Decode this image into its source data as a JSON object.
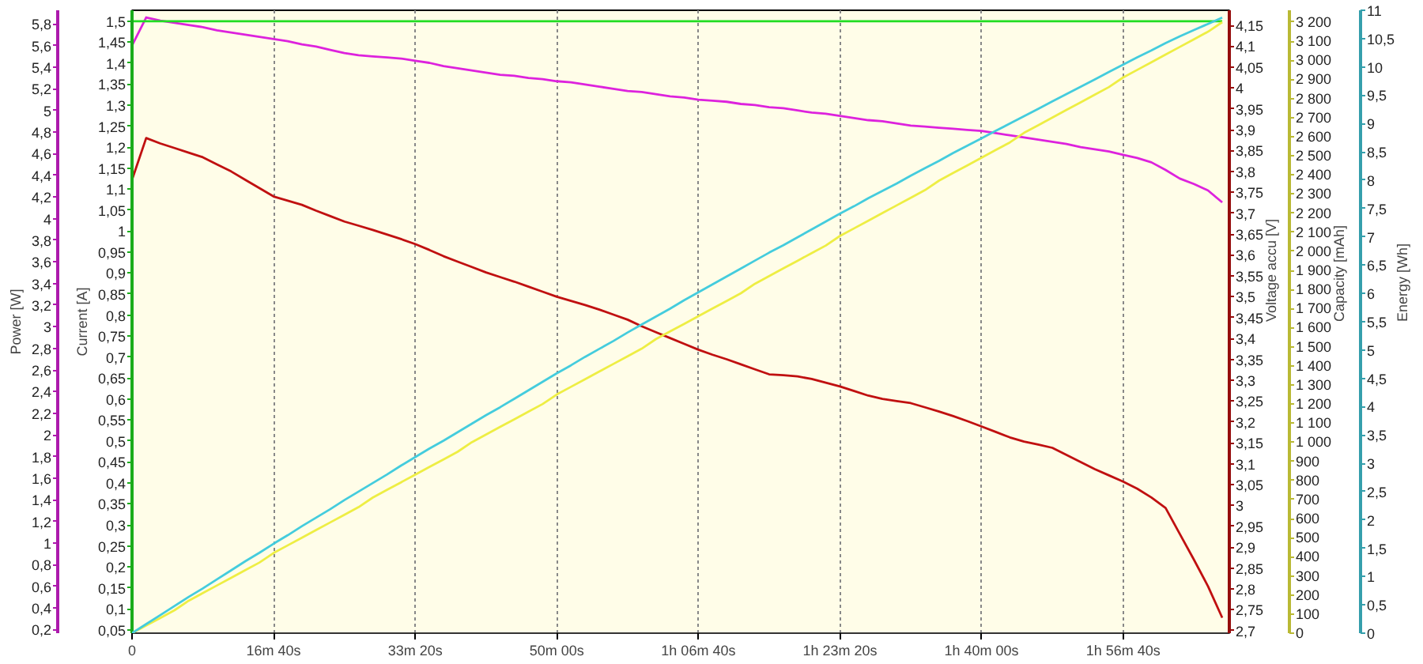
{
  "chart_data": [
    {
      "type": "line",
      "grid": "x",
      "categories": [
        "0",
        null,
        null,
        null,
        null,
        null,
        null,
        null,
        null,
        null,
        "16m 40s",
        null,
        null,
        null,
        null,
        null,
        null,
        null,
        null,
        null,
        "33m 20s",
        null,
        null,
        null,
        null,
        null,
        null,
        null,
        null,
        null,
        "50m 00s",
        null,
        null,
        null,
        null,
        null,
        null,
        null,
        null,
        null,
        "1h 06m 40s",
        null,
        null,
        null,
        null,
        null,
        null,
        null,
        null,
        null,
        "1h 23m 20s",
        null,
        null,
        null,
        null,
        null,
        null,
        null,
        null,
        null,
        "1h 40m 00s",
        null,
        null,
        null,
        null,
        null,
        null,
        null,
        null,
        null,
        "1h 56m 40s",
        null,
        null,
        null,
        null,
        null,
        null,
        null
      ],
      "ylabel": "Current [A]",
      "ylim": [
        0.042,
        1.526
      ],
      "yticks": [
        {
          "value": 0.05,
          "label": "0,05"
        },
        {
          "value": 0.1,
          "label": "0,1"
        },
        {
          "value": 0.15,
          "label": "0,15"
        },
        {
          "value": 0.2,
          "label": "0,2"
        },
        {
          "value": 0.25,
          "label": "0,25"
        },
        {
          "value": 0.3,
          "label": "0,3"
        },
        {
          "value": 0.35,
          "label": "0,35"
        },
        {
          "value": 0.4,
          "label": "0,4"
        },
        {
          "value": 0.45,
          "label": "0,45"
        },
        {
          "value": 0.5,
          "label": "0,5"
        },
        {
          "value": 0.55,
          "label": "0,55"
        },
        {
          "value": 0.6,
          "label": "0,6"
        },
        {
          "value": 0.65,
          "label": "0,65"
        },
        {
          "value": 0.7,
          "label": "0,7"
        },
        {
          "value": 0.75,
          "label": "0,75"
        },
        {
          "value": 0.8,
          "label": "0,8"
        },
        {
          "value": 0.85,
          "label": "0,85"
        },
        {
          "value": 0.9,
          "label": "0,9"
        },
        {
          "value": 0.95,
          "label": "0,95"
        },
        1,
        {
          "value": 1.05,
          "label": "1,05"
        },
        {
          "value": 1.1,
          "label": "1,1"
        },
        {
          "value": 1.15,
          "label": "1,15"
        },
        {
          "value": 1.2,
          "label": "1,2"
        },
        {
          "value": 1.25,
          "label": "1,25"
        },
        {
          "value": 1.3,
          "label": "1,3"
        },
        {
          "value": 1.35,
          "label": "1,35"
        },
        {
          "value": 1.4,
          "label": "1,4"
        },
        {
          "value": 1.45,
          "label": "1,45"
        },
        {
          "value": 1.5,
          "label": "1,5"
        }
      ],
      "y2label": "Power [W]",
      "y2lim": [
        0.167,
        5.926
      ],
      "y2ticks": [
        {
          "value": 0.2,
          "label": "0,2"
        },
        {
          "value": 0.4,
          "label": "0,4"
        },
        {
          "value": 0.6,
          "label": "0,6"
        },
        {
          "value": 0.8,
          "label": "0,8"
        },
        1,
        {
          "value": 1.2,
          "label": "1,2"
        },
        {
          "value": 1.4,
          "label": "1,4"
        },
        {
          "value": 1.6,
          "label": "1,6"
        },
        {
          "value": 1.8,
          "label": "1,8"
        },
        2,
        {
          "value": 2.2,
          "label": "2,2"
        },
        {
          "value": 2.4,
          "label": "2,4"
        },
        {
          "value": 2.6,
          "label": "2,6"
        },
        {
          "value": 2.8,
          "label": "2,8"
        },
        3,
        {
          "value": 3.2,
          "label": "3,2"
        },
        {
          "value": 3.4,
          "label": "3,4"
        },
        {
          "value": 3.6,
          "label": "3,6"
        },
        {
          "value": 3.8,
          "label": "3,8"
        },
        4,
        {
          "value": 4.2,
          "label": "4,2"
        },
        {
          "value": 4.4,
          "label": "4,4"
        },
        {
          "value": 4.6,
          "label": "4,6"
        },
        {
          "value": 4.8,
          "label": "4,8"
        },
        5,
        {
          "value": 5.2,
          "label": "5,2"
        },
        {
          "value": 5.4,
          "label": "5,4"
        },
        {
          "value": 5.6,
          "label": "5,6"
        },
        {
          "value": 5.8,
          "label": "5,8"
        }
      ],
      "y3label": "Voltage accu [V]",
      "y3lim": [
        2.694,
        4.186
      ],
      "y3ticks": [
        {
          "value": 2.7,
          "label": "2,7"
        },
        {
          "value": 2.75,
          "label": "2,75"
        },
        {
          "value": 2.8,
          "label": "2,8"
        },
        {
          "value": 2.85,
          "label": "2,85"
        },
        {
          "value": 2.9,
          "label": "2,9"
        },
        {
          "value": 2.95,
          "label": "2,95"
        },
        3,
        {
          "value": 3.05,
          "label": "3,05"
        },
        {
          "value": 3.1,
          "label": "3,1"
        },
        {
          "value": 3.15,
          "label": "3,15"
        },
        {
          "value": 3.2,
          "label": "3,2"
        },
        {
          "value": 3.25,
          "label": "3,25"
        },
        {
          "value": 3.3,
          "label": "3,3"
        },
        {
          "value": 3.35,
          "label": "3,35"
        },
        {
          "value": 3.4,
          "label": "3,4"
        },
        {
          "value": 3.45,
          "label": "3,45"
        },
        {
          "value": 3.5,
          "label": "3,5"
        },
        {
          "value": 3.55,
          "label": "3,55"
        },
        {
          "value": 3.6,
          "label": "3,6"
        },
        {
          "value": 3.65,
          "label": "3,65"
        },
        {
          "value": 3.7,
          "label": "3,7"
        },
        {
          "value": 3.75,
          "label": "3,75"
        },
        {
          "value": 3.8,
          "label": "3,8"
        },
        {
          "value": 3.85,
          "label": "3,85"
        },
        {
          "value": 3.9,
          "label": "3,9"
        },
        {
          "value": 3.95,
          "label": "3,95"
        },
        4,
        {
          "value": 4.05,
          "label": "4,05"
        },
        {
          "value": 4.1,
          "label": "4,1"
        },
        {
          "value": 4.15,
          "label": "4,15"
        }
      ],
      "series": [
        {
          "color": "#c01010",
          "axis": "y3",
          "values": [
            3.78,
            3.88,
            3.867,
            3.856,
            3.845,
            3.834,
            3.817,
            3.8,
            3.78,
            3.76,
            3.74,
            3.73,
            3.72,
            3.706,
            3.693,
            3.68,
            3.67,
            3.66,
            3.649,
            3.638,
            3.626,
            3.612,
            3.597,
            3.584,
            3.571,
            3.558,
            3.547,
            3.536,
            3.524,
            3.512,
            3.5,
            3.49,
            3.48,
            3.469,
            3.457,
            3.445,
            3.429,
            3.415,
            3.401,
            3.387,
            3.373,
            3.361,
            3.35,
            3.338,
            3.326,
            3.314,
            3.312,
            3.309,
            3.303,
            3.294,
            3.285,
            3.274,
            3.263,
            3.255,
            3.25,
            3.245,
            3.235,
            3.225,
            3.214,
            3.202,
            3.189,
            3.176,
            3.163,
            3.153,
            3.146,
            3.138,
            3.121,
            3.104,
            3.087,
            3.072,
            3.057,
            3.04,
            3.019,
            2.994,
            2.932,
            2.87,
            2.806,
            2.731
          ]
        },
        {
          "color": "#dd22dd",
          "axis": "y2",
          "values": [
            5.6,
            5.86,
            5.83,
            5.81,
            5.79,
            5.77,
            5.74,
            5.72,
            5.7,
            5.68,
            5.66,
            5.64,
            5.61,
            5.59,
            5.56,
            5.53,
            5.51,
            5.5,
            5.49,
            5.48,
            5.46,
            5.44,
            5.41,
            5.39,
            5.37,
            5.35,
            5.33,
            5.32,
            5.3,
            5.29,
            5.27,
            5.26,
            5.24,
            5.22,
            5.2,
            5.18,
            5.17,
            5.15,
            5.13,
            5.12,
            5.1,
            5.09,
            5.08,
            5.06,
            5.05,
            5.03,
            5.02,
            5,
            4.98,
            4.97,
            4.95,
            4.93,
            4.91,
            4.9,
            4.88,
            4.86,
            4.85,
            4.84,
            4.83,
            4.82,
            4.81,
            4.79,
            4.77,
            4.75,
            4.73,
            4.71,
            4.69,
            4.66,
            4.64,
            4.62,
            4.59,
            4.56,
            4.52,
            4.45,
            4.37,
            4.32,
            4.26,
            4.15
          ]
        },
        {
          "color": "#22dd22",
          "values": [
            1.5,
            1.5,
            1.5,
            1.5,
            1.5,
            1.5,
            1.5,
            1.5,
            1.5,
            1.5,
            1.5,
            1.5,
            1.5,
            1.5,
            1.5,
            1.5,
            1.5,
            1.5,
            1.5,
            1.5,
            1.5,
            1.5,
            1.5,
            1.5,
            1.5,
            1.5,
            1.5,
            1.5,
            1.5,
            1.5,
            1.5,
            1.5,
            1.5,
            1.5,
            1.5,
            1.5,
            1.5,
            1.5,
            1.5,
            1.5,
            1.5,
            1.5,
            1.5,
            1.5,
            1.5,
            1.5,
            1.5,
            1.5,
            1.5,
            1.5,
            1.5,
            1.5,
            1.5,
            1.5,
            1.5,
            1.5,
            1.5,
            1.5,
            1.5,
            1.5,
            1.5,
            1.5,
            1.5,
            1.5,
            1.5,
            1.5,
            1.5,
            1.5,
            1.5,
            1.5,
            1.5,
            1.5,
            1.5,
            1.5,
            1.5,
            1.5,
            1.5,
            1.5
          ]
        }
      ]
    },
    {
      "type": "line",
      "tick_labels": "y",
      "categories": [
        null,
        null,
        null,
        null,
        null,
        null,
        null,
        null,
        null,
        null,
        null,
        null,
        null,
        null,
        null,
        null,
        null,
        null,
        null,
        null,
        null,
        null,
        null,
        null,
        null,
        null,
        null,
        null,
        null,
        null,
        null,
        null,
        null,
        null,
        null,
        null,
        null,
        null,
        null,
        null,
        null,
        null,
        null,
        null,
        null,
        null,
        null,
        null,
        null,
        null,
        null,
        null,
        null,
        null,
        null,
        null,
        null,
        null,
        null,
        null,
        null,
        null,
        null,
        null,
        null,
        null,
        null,
        null,
        null,
        null,
        null,
        null,
        null,
        null,
        null,
        null,
        null,
        null
      ],
      "ylabel": "Capacity [mAh]",
      "ylim": [
        0,
        3262
      ],
      "yticks": [
        0,
        100,
        200,
        300,
        400,
        500,
        600,
        700,
        800,
        900,
        {
          "value": 1000,
          "label": "1 000"
        },
        {
          "value": 1100,
          "label": "1 100"
        },
        {
          "value": 1200,
          "label": "1 200"
        },
        {
          "value": 1300,
          "label": "1 300"
        },
        {
          "value": 1400,
          "label": "1 400"
        },
        {
          "value": 1500,
          "label": "1 500"
        },
        {
          "value": 1600,
          "label": "1 600"
        },
        {
          "value": 1700,
          "label": "1 700"
        },
        {
          "value": 1800,
          "label": "1 800"
        },
        {
          "value": 1900,
          "label": "1 900"
        },
        {
          "value": 2000,
          "label": "2 000"
        },
        {
          "value": 2100,
          "label": "2 100"
        },
        {
          "value": 2200,
          "label": "2 200"
        },
        {
          "value": 2300,
          "label": "2 300"
        },
        {
          "value": 2400,
          "label": "2 400"
        },
        {
          "value": 2500,
          "label": "2 500"
        },
        {
          "value": 2600,
          "label": "2 600"
        },
        {
          "value": 2700,
          "label": "2 700"
        },
        {
          "value": 2800,
          "label": "2 800"
        },
        {
          "value": 2900,
          "label": "2 900"
        },
        {
          "value": 3000,
          "label": "3 000"
        },
        {
          "value": 3100,
          "label": "3 100"
        },
        {
          "value": 3200,
          "label": "3 200"
        }
      ],
      "y2label": "Energy [Wh]",
      "y2lim": [
        0,
        11
      ],
      "y2ticks": [
        0,
        {
          "value": 0.5,
          "label": "0,5"
        },
        1,
        {
          "value": 1.5,
          "label": "1,5"
        },
        2,
        {
          "value": 2.5,
          "label": "2,5"
        },
        3,
        {
          "value": 3.5,
          "label": "3,5"
        },
        4,
        {
          "value": 4.5,
          "label": "4,5"
        },
        5,
        {
          "value": 5.5,
          "label": "5,5"
        },
        6,
        {
          "value": 6.5,
          "label": "6,5"
        },
        7,
        {
          "value": 7.5,
          "label": "7,5"
        },
        8,
        {
          "value": 8.5,
          "label": "8,5"
        },
        9,
        {
          "value": 9.5,
          "label": "9,5"
        },
        10,
        {
          "value": 10.5,
          "label": "10,5"
        },
        11
      ],
      "series": [
        {
          "color": "#eeee44",
          "values": [
            0,
            40,
            80,
            120,
            170,
            210,
            250,
            290,
            330,
            370,
            420,
            460,
            500,
            540,
            580,
            620,
            660,
            710,
            750,
            790,
            830,
            870,
            910,
            950,
            1000,
            1040,
            1080,
            1120,
            1160,
            1200,
            1250,
            1290,
            1330,
            1370,
            1410,
            1450,
            1490,
            1540,
            1580,
            1620,
            1660,
            1700,
            1740,
            1780,
            1830,
            1870,
            1910,
            1950,
            1990,
            2030,
            2080,
            2120,
            2160,
            2200,
            2240,
            2280,
            2320,
            2370,
            2410,
            2450,
            2490,
            2530,
            2570,
            2620,
            2660,
            2700,
            2740,
            2780,
            2820,
            2860,
            2910,
            2950,
            2990,
            3030,
            3070,
            3110,
            3150,
            3200
          ]
        },
        {
          "color": "#44ccdd",
          "axis": "y2",
          "values": [
            0,
            0.16,
            0.32,
            0.48,
            0.64,
            0.79,
            0.95,
            1.11,
            1.27,
            1.42,
            1.58,
            1.73,
            1.89,
            2.04,
            2.19,
            2.35,
            2.5,
            2.65,
            2.8,
            2.96,
            3.11,
            3.26,
            3.4,
            3.55,
            3.7,
            3.85,
            3.99,
            4.14,
            4.29,
            4.44,
            4.59,
            4.73,
            4.88,
            5.02,
            5.16,
            5.31,
            5.45,
            5.59,
            5.73,
            5.88,
            6.02,
            6.16,
            6.3,
            6.44,
            6.58,
            6.72,
            6.85,
            6.99,
            7.13,
            7.27,
            7.41,
            7.54,
            7.68,
            7.81,
            7.94,
            8.08,
            8.21,
            8.34,
            8.48,
            8.61,
            8.74,
            8.87,
            9,
            9.13,
            9.26,
            9.39,
            9.52,
            9.65,
            9.78,
            9.91,
            10.04,
            10.17,
            10.29,
            10.42,
            10.54,
            10.65,
            10.76,
            10.87
          ]
        }
      ]
    }
  ]
}
